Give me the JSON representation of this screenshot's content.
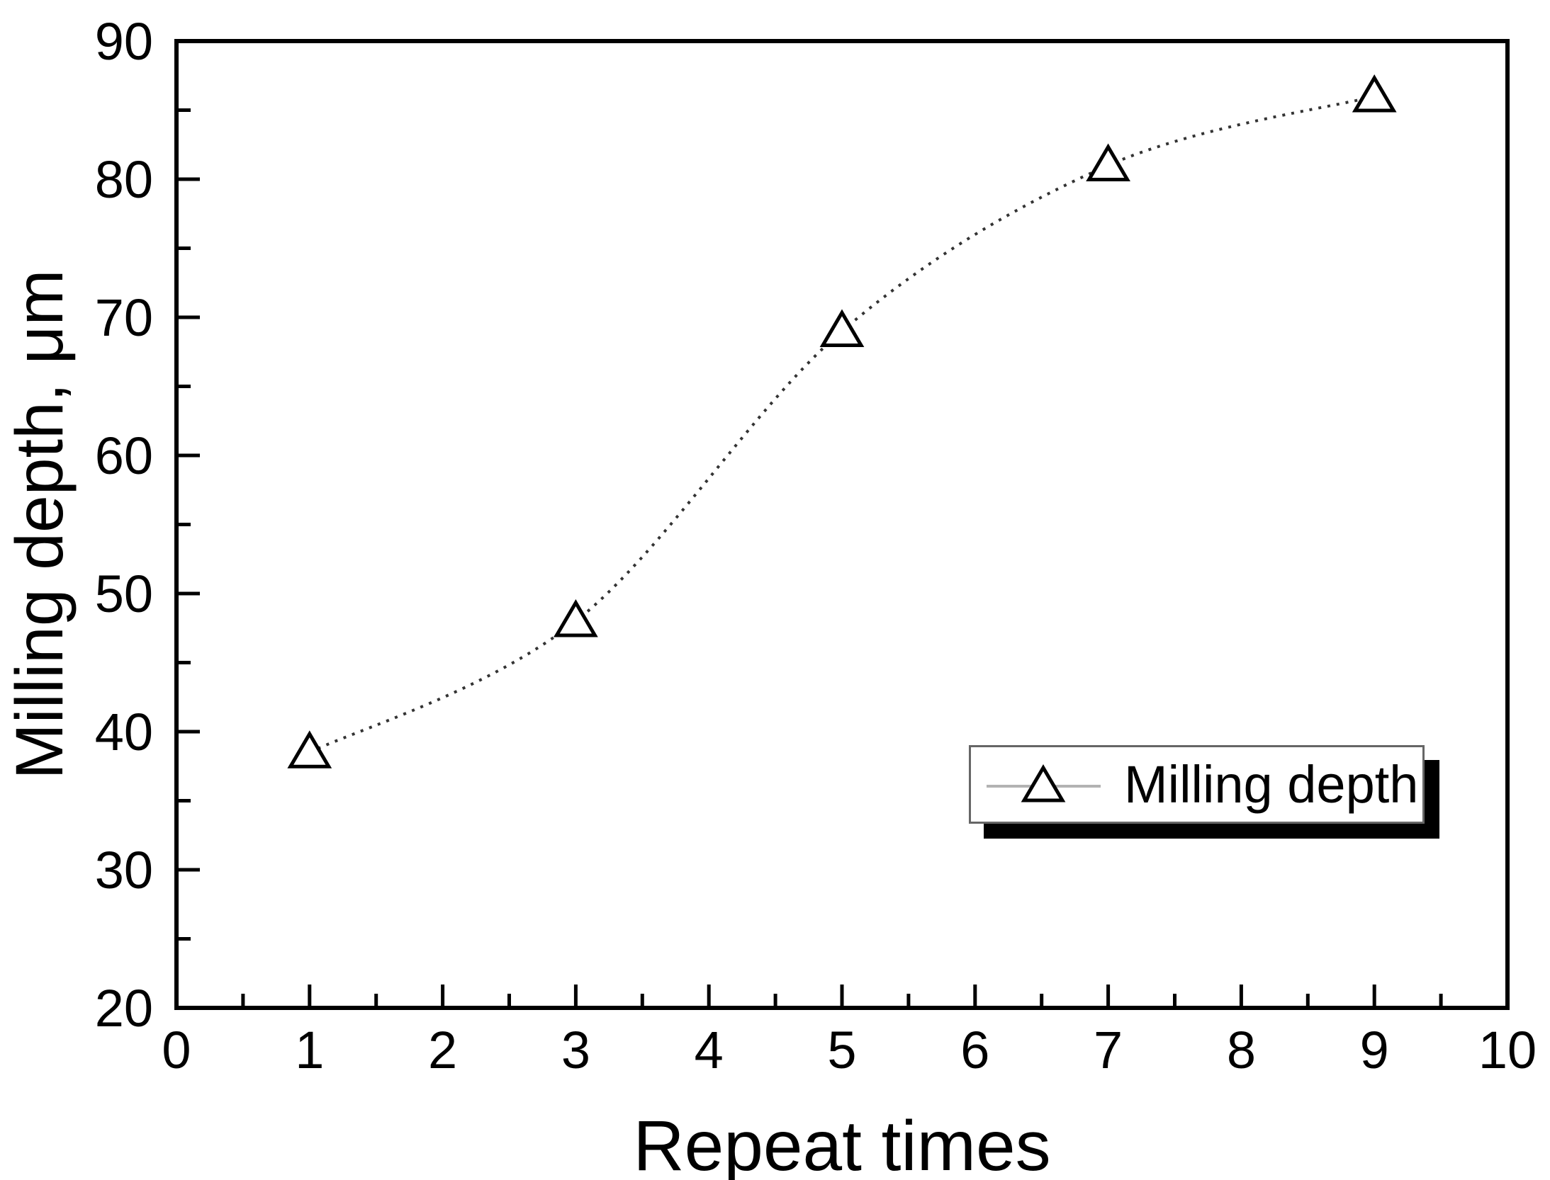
{
  "chart_data": {
    "type": "line",
    "title": "",
    "xlabel": "Repeat times",
    "ylabel": "Milling depth, μm",
    "x": [
      1,
      3,
      5,
      7,
      9
    ],
    "series": [
      {
        "name": "Milling depth",
        "values": [
          38.5,
          48,
          69,
          81,
          86
        ]
      }
    ],
    "xlim": [
      0,
      10
    ],
    "ylim": [
      20,
      90
    ],
    "xticks_major": [
      0,
      1,
      2,
      3,
      4,
      5,
      6,
      7,
      8,
      9,
      10
    ],
    "xtick_labels": [
      "0",
      "1",
      "2",
      "3",
      "4",
      "5",
      "6",
      "7",
      "8",
      "9",
      "10"
    ],
    "x_minor_step": 0.5,
    "yticks_major": [
      20,
      30,
      40,
      50,
      60,
      70,
      80,
      90
    ],
    "ytick_labels": [
      "20",
      "30",
      "40",
      "50",
      "60",
      "70",
      "80",
      "90"
    ],
    "y_minor_step": 5,
    "grid": false,
    "line_style": "dotted",
    "marker": "open-triangle-up",
    "legend_position": "lower right"
  },
  "legend": {
    "label": "Milling depth",
    "marker": "triangle-up-icon"
  },
  "colors": {
    "background": "#ffffff",
    "axis": "#000000",
    "curve": "#333333",
    "marker_stroke": "#000000",
    "marker_fill": "#ffffff",
    "legend_border": "#666666",
    "legend_shadow": "#000000",
    "legend_line": "#b3b3b3",
    "text": "#000000"
  }
}
